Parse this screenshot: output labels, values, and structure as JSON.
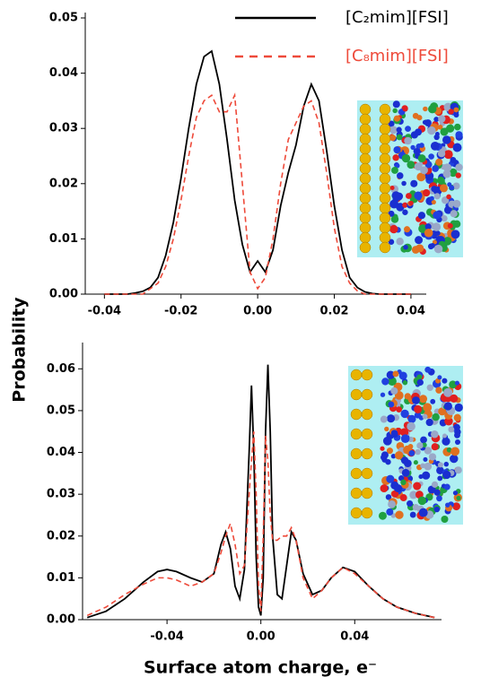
{
  "chart_data": [
    {
      "type": "line",
      "ylabel": "Probability",
      "x": [
        -0.04,
        -0.038,
        -0.036,
        -0.034,
        -0.032,
        -0.03,
        -0.028,
        -0.026,
        -0.024,
        -0.022,
        -0.02,
        -0.018,
        -0.016,
        -0.014,
        -0.012,
        -0.01,
        -0.008,
        -0.006,
        -0.004,
        -0.002,
        0,
        0.002,
        0.004,
        0.006,
        0.008,
        0.01,
        0.012,
        0.014,
        0.016,
        0.018,
        0.02,
        0.022,
        0.024,
        0.026,
        0.028,
        0.03,
        0.032,
        0.034,
        0.036,
        0.038,
        0.04
      ],
      "series": [
        {
          "name": "[C₂mim][FSI]",
          "color": "#000000",
          "dash": false,
          "values": [
            0,
            0,
            0,
            0,
            0.0002,
            0.0005,
            0.0012,
            0.003,
            0.007,
            0.013,
            0.021,
            0.03,
            0.038,
            0.043,
            0.044,
            0.038,
            0.028,
            0.017,
            0.009,
            0.004,
            0.006,
            0.004,
            0.008,
            0.016,
            0.022,
            0.027,
            0.034,
            0.038,
            0.035,
            0.026,
            0.016,
            0.008,
            0.003,
            0.0012,
            0.0004,
            0.0001,
            0,
            0,
            0,
            0,
            0
          ]
        },
        {
          "name": "[C₈mim][FSI]",
          "color": "#ee4a3a",
          "dash": true,
          "values": [
            0,
            0,
            0,
            0,
            0,
            0,
            0.001,
            0.002,
            0.005,
            0.01,
            0.017,
            0.025,
            0.032,
            0.035,
            0.036,
            0.033,
            0.033,
            0.036,
            0.02,
            0.004,
            0.001,
            0.003,
            0.01,
            0.02,
            0.028,
            0.031,
            0.034,
            0.035,
            0.031,
            0.022,
            0.012,
            0.005,
            0.002,
            0.0006,
            0,
            0,
            0,
            0,
            0,
            0,
            0
          ]
        }
      ],
      "xlim": [
        -0.045,
        0.044
      ],
      "xticks": [
        -0.04,
        -0.02,
        {
          "value": 0,
          "label": "0.00"
        },
        0.02,
        0.04
      ],
      "ylim": [
        0,
        0.05
      ],
      "yticks": [
        {
          "value": 0,
          "label": "0.00"
        },
        0.01,
        0.02,
        0.03,
        0.04,
        0.05
      ],
      "legend": "upper right"
    },
    {
      "type": "line",
      "xlabel": "Surface atom charge, e⁻",
      "x": [
        -0.074,
        -0.066,
        -0.058,
        -0.05,
        -0.044,
        -0.04,
        -0.036,
        -0.03,
        -0.025,
        -0.02,
        -0.017,
        -0.015,
        -0.013,
        -0.011,
        -0.009,
        -0.007,
        -0.005,
        -0.004,
        -0.003,
        -0.002,
        -0.001,
        0,
        0.001,
        0.002,
        0.003,
        0.004,
        0.005,
        0.007,
        0.009,
        0.011,
        0.013,
        0.015,
        0.018,
        0.022,
        0.026,
        0.03,
        0.035,
        0.04,
        0.046,
        0.052,
        0.058,
        0.066,
        0.074
      ],
      "series": [
        {
          "color": "#000000",
          "dash": false,
          "values": [
            0.0005,
            0.002,
            0.005,
            0.009,
            0.0115,
            0.012,
            0.0115,
            0.01,
            0.009,
            0.011,
            0.018,
            0.021,
            0.017,
            0.008,
            0.005,
            0.012,
            0.04,
            0.056,
            0.04,
            0.015,
            0.003,
            0.001,
            0.01,
            0.045,
            0.061,
            0.045,
            0.02,
            0.006,
            0.005,
            0.013,
            0.021,
            0.019,
            0.011,
            0.006,
            0.007,
            0.01,
            0.0125,
            0.0115,
            0.008,
            0.005,
            0.003,
            0.0015,
            0.0005
          ]
        },
        {
          "color": "#ee4a3a",
          "dash": true,
          "values": [
            0.001,
            0.003,
            0.006,
            0.0085,
            0.01,
            0.01,
            0.0095,
            0.008,
            0.009,
            0.011,
            0.016,
            0.02,
            0.023,
            0.018,
            0.011,
            0.013,
            0.03,
            0.038,
            0.045,
            0.03,
            0.008,
            0.002,
            0.02,
            0.044,
            0.038,
            0.025,
            0.019,
            0.019,
            0.02,
            0.02,
            0.022,
            0.019,
            0.01,
            0.005,
            0.007,
            0.01,
            0.0125,
            0.011,
            0.008,
            0.005,
            0.003,
            0.0015,
            0.0005
          ]
        }
      ],
      "xlim": [
        -0.076,
        0.077
      ],
      "xticks": [
        -0.04,
        {
          "value": 0,
          "label": "0.00"
        },
        0.04
      ],
      "ylim": [
        0,
        0.065
      ],
      "yticks": [
        {
          "value": 0,
          "label": "0.00"
        },
        0.01,
        0.02,
        0.03,
        0.04,
        0.05,
        0.06
      ]
    }
  ]
}
